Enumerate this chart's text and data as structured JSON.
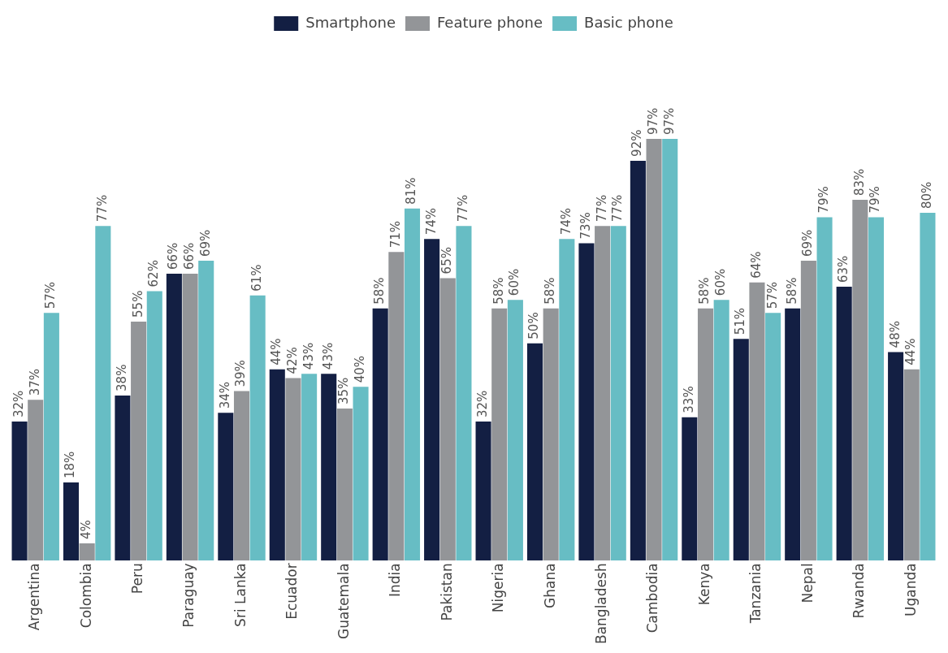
{
  "chart_data": {
    "type": "bar",
    "categories": [
      "Argentina",
      "Colombia",
      "Peru",
      "Paraguay",
      "Sri Lanka",
      "Ecuador",
      "Guatemala",
      "India",
      "Pakistan",
      "Nigeria",
      "Ghana",
      "Bangladesh",
      "Cambodia",
      "Kenya",
      "Tanzania",
      "Nepal",
      "Rwanda",
      "Uganda"
    ],
    "series": [
      {
        "name": "Smartphone",
        "color": "#131f43",
        "values": [
          32,
          18,
          38,
          66,
          34,
          44,
          43,
          58,
          74,
          32,
          50,
          73,
          92,
          33,
          51,
          58,
          63,
          48
        ],
        "value_labels": [
          "32%",
          "18%",
          "38%",
          "66%",
          "34%",
          "44%",
          "43%",
          "58%",
          "74%",
          "32%",
          "50%",
          "73%",
          "92%",
          "33%",
          "51%",
          "58%",
          "63%",
          "48%"
        ]
      },
      {
        "name": "Feature phone",
        "color": "#939598",
        "values": [
          37,
          4,
          55,
          66,
          39,
          42,
          35,
          71,
          65,
          58,
          58,
          77,
          97,
          58,
          64,
          69,
          83,
          44
        ],
        "value_labels": [
          "37%",
          "4%",
          "55%",
          "66%",
          "39%",
          "42%",
          "35%",
          "71%",
          "65%",
          "58%",
          "58%",
          "77%",
          "97%",
          "58%",
          "64%",
          "69%",
          "83%",
          "44%"
        ]
      },
      {
        "name": "Basic phone",
        "color": "#67bdc4",
        "values": [
          57,
          77,
          62,
          69,
          61,
          43,
          40,
          81,
          77,
          60,
          74,
          77,
          97,
          60,
          57,
          79,
          79,
          80
        ],
        "value_labels": [
          "57%",
          "77%",
          "62%",
          "69%",
          "61%",
          "43%",
          "40%",
          "81%",
          "77%",
          "60%",
          "74%",
          "77%",
          "97%",
          "60%",
          "57%",
          "79%",
          "79%",
          "80%"
        ]
      }
    ],
    "grid": false,
    "legend": "top"
  }
}
